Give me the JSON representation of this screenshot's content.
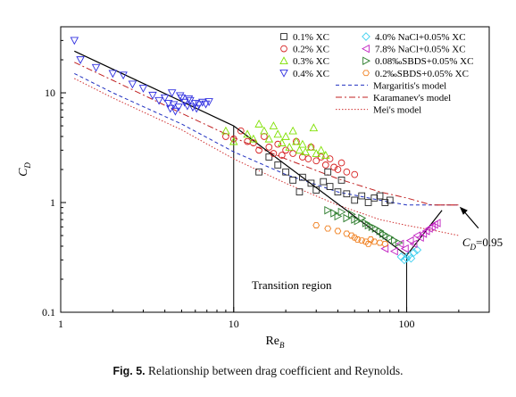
{
  "caption": {
    "label": "Fig. 5.",
    "text": " Relationship between drag coefficient and Reynolds."
  },
  "chart_data": {
    "type": "scatter",
    "xlabel": "Re",
    "xlabel_sub": "B",
    "ylabel": "C",
    "ylabel_sub": "D",
    "xscale": "log",
    "yscale": "log",
    "xlim": [
      1,
      300
    ],
    "ylim": [
      0.1,
      40
    ],
    "xticks": [
      1,
      10,
      100
    ],
    "xtick_labels": [
      "1",
      "10",
      "100"
    ],
    "yticks": [
      0.1,
      1,
      10
    ],
    "ytick_labels": [
      "0.1",
      "1",
      "10"
    ],
    "grid": false,
    "legend_position": "top-right",
    "series": [
      {
        "name": "0.1% XC",
        "marker": "square",
        "color": "#222222",
        "points": [
          [
            18,
            2.2
          ],
          [
            20,
            1.9
          ],
          [
            22,
            1.6
          ],
          [
            25,
            1.7
          ],
          [
            28,
            1.5
          ],
          [
            30,
            1.3
          ],
          [
            33,
            1.55
          ],
          [
            36,
            1.4
          ],
          [
            40,
            1.25
          ],
          [
            42,
            1.6
          ],
          [
            45,
            1.2
          ],
          [
            50,
            1.05
          ],
          [
            55,
            1.15
          ],
          [
            60,
            1.0
          ],
          [
            65,
            1.1
          ],
          [
            70,
            1.15
          ],
          [
            75,
            1.0
          ],
          [
            80,
            1.05
          ],
          [
            14,
            1.9
          ],
          [
            16,
            2.6
          ],
          [
            24,
            1.25
          ],
          [
            35,
            1.9
          ]
        ]
      },
      {
        "name": "0.2% XC",
        "marker": "circle",
        "color": "#d62020",
        "points": [
          [
            9,
            4.0
          ],
          [
            10,
            3.8
          ],
          [
            11,
            4.5
          ],
          [
            12,
            3.6
          ],
          [
            13,
            3.5
          ],
          [
            14,
            3.0
          ],
          [
            15,
            4.0
          ],
          [
            16,
            3.2
          ],
          [
            17,
            2.8
          ],
          [
            18,
            3.4
          ],
          [
            19,
            2.7
          ],
          [
            20,
            3.0
          ],
          [
            22,
            2.8
          ],
          [
            23,
            3.6
          ],
          [
            25,
            2.6
          ],
          [
            27,
            2.5
          ],
          [
            28,
            3.2
          ],
          [
            30,
            2.4
          ],
          [
            32,
            2.6
          ],
          [
            34,
            2.2
          ],
          [
            36,
            2.5
          ],
          [
            38,
            2.1
          ],
          [
            40,
            2.0
          ],
          [
            42,
            2.3
          ],
          [
            45,
            1.9
          ],
          [
            50,
            1.8
          ]
        ]
      },
      {
        "name": "0.3% XC",
        "marker": "triangle-up",
        "color": "#7fe000",
        "points": [
          [
            9,
            4.5
          ],
          [
            10,
            3.6
          ],
          [
            12,
            4.2
          ],
          [
            13,
            3.8
          ],
          [
            14,
            5.2
          ],
          [
            15,
            4.5
          ],
          [
            16,
            3.8
          ],
          [
            17,
            5.0
          ],
          [
            18,
            4.2
          ],
          [
            19,
            3.5
          ],
          [
            20,
            4.0
          ],
          [
            21,
            3.2
          ],
          [
            22,
            4.5
          ],
          [
            23,
            3.6
          ],
          [
            24,
            3.0
          ],
          [
            25,
            3.4
          ],
          [
            26,
            2.9
          ],
          [
            28,
            3.2
          ],
          [
            29,
            4.8
          ],
          [
            30,
            2.8
          ],
          [
            32,
            3.0
          ],
          [
            34,
            2.7
          ]
        ]
      },
      {
        "name": "0.4% XC",
        "marker": "triangle-down",
        "color": "#3030e0",
        "points": [
          [
            1.2,
            30
          ],
          [
            1.3,
            20
          ],
          [
            1.6,
            17
          ],
          [
            2.0,
            15
          ],
          [
            2.3,
            14.5
          ],
          [
            2.6,
            12
          ],
          [
            3.0,
            11
          ],
          [
            3.4,
            9.5
          ],
          [
            3.7,
            8.5
          ],
          [
            4.0,
            9
          ],
          [
            4.2,
            8
          ],
          [
            4.3,
            7.2
          ],
          [
            4.5,
            7.8
          ],
          [
            4.6,
            6.8
          ],
          [
            4.8,
            7.4
          ],
          [
            5.0,
            9
          ],
          [
            5.2,
            8.2
          ],
          [
            5.4,
            7.6
          ],
          [
            5.6,
            8.5
          ],
          [
            5.8,
            7.4
          ],
          [
            6.0,
            8
          ],
          [
            6.3,
            7.8
          ],
          [
            6.6,
            8.2
          ],
          [
            6.9,
            7.9
          ],
          [
            7.2,
            8.3
          ],
          [
            4.4,
            10
          ],
          [
            4.9,
            9.4
          ],
          [
            5.5,
            8.8
          ],
          [
            6.1,
            7.2
          ]
        ]
      },
      {
        "name": "4.0% NaCl+0.05% XC",
        "marker": "diamond",
        "color": "#40d0f0",
        "points": [
          [
            93,
            0.32
          ],
          [
            97,
            0.3
          ],
          [
            100,
            0.31
          ],
          [
            103,
            0.33
          ],
          [
            106,
            0.31
          ],
          [
            110,
            0.35
          ],
          [
            115,
            0.37
          ]
        ]
      },
      {
        "name": "7.8% NaCl+0.05% XC",
        "marker": "triangle-left",
        "color": "#c020c0",
        "points": [
          [
            75,
            0.38
          ],
          [
            85,
            0.36
          ],
          [
            92,
            0.42
          ],
          [
            98,
            0.38
          ],
          [
            105,
            0.45
          ],
          [
            110,
            0.42
          ],
          [
            115,
            0.5
          ],
          [
            120,
            0.48
          ],
          [
            125,
            0.52
          ],
          [
            130,
            0.55
          ],
          [
            135,
            0.58
          ],
          [
            140,
            0.6
          ],
          [
            145,
            0.63
          ],
          [
            150,
            0.65
          ]
        ]
      },
      {
        "name": "0.08‰SBDS+0.05% XC",
        "marker": "triangle-right",
        "color": "#2e7d2e",
        "points": [
          [
            35,
            0.85
          ],
          [
            38,
            0.8
          ],
          [
            40,
            0.75
          ],
          [
            42,
            0.82
          ],
          [
            45,
            0.72
          ],
          [
            48,
            0.78
          ],
          [
            50,
            0.7
          ],
          [
            52,
            0.68
          ],
          [
            55,
            0.72
          ],
          [
            58,
            0.65
          ],
          [
            60,
            0.62
          ],
          [
            63,
            0.6
          ],
          [
            66,
            0.58
          ],
          [
            70,
            0.55
          ],
          [
            73,
            0.52
          ],
          [
            76,
            0.5
          ],
          [
            80,
            0.48
          ],
          [
            85,
            0.45
          ],
          [
            90,
            0.43
          ]
        ]
      },
      {
        "name": "0.2‰SBDS+0.05% XC",
        "marker": "hexagon",
        "color": "#f08020",
        "points": [
          [
            30,
            0.62
          ],
          [
            35,
            0.58
          ],
          [
            40,
            0.55
          ],
          [
            45,
            0.52
          ],
          [
            48,
            0.5
          ],
          [
            50,
            0.48
          ],
          [
            52,
            0.46
          ],
          [
            55,
            0.45
          ],
          [
            58,
            0.44
          ],
          [
            60,
            0.42
          ],
          [
            62,
            0.46
          ],
          [
            65,
            0.44
          ],
          [
            70,
            0.43
          ],
          [
            75,
            0.42
          ]
        ]
      }
    ],
    "lines": [
      {
        "name": "Margaritis's model",
        "style": "dashed",
        "color": "#2030c0",
        "points": [
          [
            1.2,
            15
          ],
          [
            2,
            10
          ],
          [
            5,
            5.2
          ],
          [
            10,
            2.9
          ],
          [
            20,
            1.8
          ],
          [
            40,
            1.25
          ],
          [
            70,
            1.05
          ],
          [
            100,
            0.95
          ],
          [
            150,
            0.95
          ],
          [
            200,
            0.95
          ]
        ]
      },
      {
        "name": "Karamanev's model",
        "style": "dashdot",
        "color": "#c02020",
        "points": [
          [
            1.2,
            19
          ],
          [
            2,
            13
          ],
          [
            5,
            6.5
          ],
          [
            10,
            3.9
          ],
          [
            20,
            2.5
          ],
          [
            40,
            1.65
          ],
          [
            70,
            1.25
          ],
          [
            100,
            1.1
          ],
          [
            140,
            0.95
          ],
          [
            200,
            0.95
          ]
        ]
      },
      {
        "name": "Mei's model",
        "style": "dotted",
        "color": "#d03030",
        "points": [
          [
            1.2,
            13.5
          ],
          [
            2,
            9
          ],
          [
            5,
            4.6
          ],
          [
            10,
            2.5
          ],
          [
            20,
            1.5
          ],
          [
            40,
            0.95
          ],
          [
            70,
            0.7
          ],
          [
            100,
            0.62
          ],
          [
            150,
            0.55
          ],
          [
            200,
            0.5
          ]
        ]
      },
      {
        "name": "",
        "style": "solid",
        "color": "#000000",
        "points": [
          [
            1.2,
            24
          ],
          [
            10,
            5
          ],
          [
            100,
            0.33
          ],
          [
            160,
            0.85
          ]
        ]
      }
    ],
    "annotations": {
      "transition_region": "Transition region",
      "cd_label": "C",
      "cd_sub": "D",
      "cd_value": "=0.95"
    }
  }
}
